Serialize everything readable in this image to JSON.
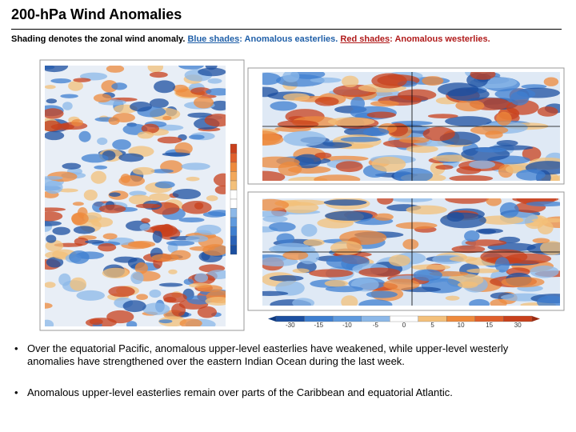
{
  "header": {
    "title": "200-hPa Wind Anomalies"
  },
  "subtitle": {
    "lead": "Shading denotes the zonal wind anomaly.",
    "blue_label": "Blue shades",
    "blue_text": ": Anomalous easterlies.",
    "red_label": "Red shades",
    "red_text": ": Anomalous westerlies."
  },
  "colorbar": {
    "labels": [
      "-30",
      "-15",
      "-10",
      "-5",
      "0",
      "5",
      "10",
      "15",
      "30"
    ]
  },
  "bullets": [
    "Over the equatorial Pacific, anomalous upper-level easterlies have weakened, while upper-level westerly anomalies have strengthened over the eastern Indian Ocean during the last week.",
    "Anomalous upper-level easterlies remain over parts of the Caribbean and equatorial Atlantic."
  ]
}
